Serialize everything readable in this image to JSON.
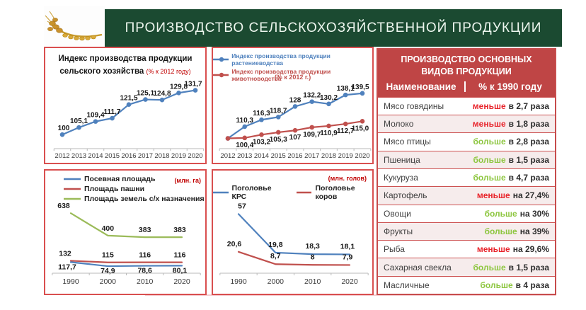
{
  "header": {
    "title": "ПРОИЗВОДСТВО СЕЛЬСКОХОЗЯЙСТВЕННОЙ ПРОДУКЦИИ"
  },
  "colors": {
    "banner_bg": "#1b4a31",
    "panel_border": "#d94f4f",
    "line_blue": "#4f81bd",
    "line_red": "#c0504d",
    "line_green": "#9bbb59",
    "table_header_bg": "#bf4545",
    "less": "#e8232a",
    "more": "#8dc63f",
    "note_red": "#c00000",
    "axis_gray": "#b9b9b9",
    "label_dark": "#1a1a1a"
  },
  "chart_data": [
    {
      "id": "c1",
      "type": "line",
      "title_line1": "Индекс производства продукции",
      "title_line2": "сельского хозяйства",
      "title_note": "(% к 2012 году)",
      "categories": [
        "2012",
        "2013",
        "2014",
        "2015",
        "2016",
        "2017",
        "2018",
        "2019",
        "2020"
      ],
      "ylim": [
        90,
        135
      ],
      "series": [
        {
          "name": "Индекс производства продукции сельского хозяйства",
          "color": "blue",
          "marker": true,
          "label_pos": "above",
          "values": [
            100,
            105.1,
            109.4,
            111.7,
            121.5,
            125.1,
            124.8,
            129.8,
            131.7
          ],
          "labels": [
            "100",
            "105,1",
            "109,4",
            "111,7",
            "121,5",
            "125,1",
            "124,8",
            "129,8",
            "131,7"
          ]
        }
      ]
    },
    {
      "id": "c2",
      "type": "line",
      "legend": [
        {
          "color": "blue",
          "label": "Индекс производства продукции растениеводства"
        },
        {
          "color": "red",
          "label": "Индекс производства продукции животноводства"
        }
      ],
      "legend_note": "(% к 2012 г.)",
      "categories": [
        "2012",
        "2013",
        "2014",
        "2015",
        "2016",
        "2017",
        "2018",
        "2019",
        "2020"
      ],
      "ylim": [
        91,
        145
      ],
      "series": [
        {
          "name": "Индекс производства продукции растениеводства",
          "color": "blue",
          "marker": true,
          "label_pos": "above",
          "values": [
            100,
            110.3,
            116.3,
            118.7,
            128,
            132.2,
            130.2,
            138.1,
            139.5
          ],
          "labels": [
            "",
            "110,3",
            "116,3",
            "118,7",
            "128",
            "132,2",
            "130,2",
            "138,1",
            "139,5"
          ]
        },
        {
          "name": "Индекс производства продукции животноводства",
          "color": "red",
          "marker": true,
          "label_pos": "below",
          "values": [
            100,
            100.4,
            103.2,
            105.3,
            107,
            109.7,
            110.9,
            112.7,
            115.0
          ],
          "labels": [
            "",
            "100,4",
            "103,2",
            "105,3",
            "107",
            "109,7",
            "110,9",
            "112,7",
            "115,0"
          ]
        }
      ]
    },
    {
      "id": "c3",
      "type": "line",
      "legend": [
        {
          "color": "blue",
          "label": "Посевная площадь"
        },
        {
          "color": "red",
          "label": "Площадь пашни"
        },
        {
          "color": "green",
          "label": "Площадь земель с/х назначения"
        }
      ],
      "unit": "(млн. га)",
      "categories": [
        "1990",
        "2000",
        "2010",
        "2020"
      ],
      "ylim": [
        0,
        700
      ],
      "series": [
        {
          "name": "Площадь земель с/х назначения",
          "color": "green",
          "marker": false,
          "label_pos": "above",
          "label_dy": -7,
          "label_dx0": -10,
          "values": [
            638,
            400,
            383,
            383
          ],
          "labels": [
            "638",
            "400",
            "383",
            "383"
          ]
        },
        {
          "name": "Площадь пашни",
          "color": "red",
          "marker": false,
          "label_pos": "above",
          "label_dy": -7,
          "label_dx0": -8,
          "values": [
            132,
            115,
            116,
            116
          ],
          "labels": [
            "132",
            "115",
            "116",
            "116"
          ]
        },
        {
          "name": "Посевная площадь",
          "color": "blue",
          "marker": false,
          "label_pos": "below",
          "label_dy": 10,
          "label_dx0": -5,
          "values": [
            117.7,
            74.9,
            78.6,
            80.1
          ],
          "labels": [
            "117,7",
            "74,9",
            "78,6",
            "80,1"
          ]
        }
      ]
    },
    {
      "id": "c4",
      "type": "line",
      "legend": [
        {
          "color": "blue",
          "label": "Поголовье КРС"
        },
        {
          "color": "red",
          "label": "Поголовье коров"
        }
      ],
      "unit": "(млн. голов)",
      "categories": [
        "1990",
        "2000",
        "2010",
        "2020"
      ],
      "ylim": [
        0,
        60
      ],
      "series": [
        {
          "name": "Поголовье КРС",
          "color": "blue",
          "marker": false,
          "label_pos": "above",
          "label_dy": -8,
          "label_dx0": 5,
          "values": [
            57,
            19.8,
            18.3,
            18.1
          ],
          "labels": [
            "57",
            "19,8",
            "18,3",
            "18,1"
          ]
        },
        {
          "name": "Поголовье коров",
          "color": "red",
          "marker": false,
          "label_pos": "above",
          "label_dy": -8,
          "label_dx0": -6,
          "values": [
            20.6,
            8.7,
            8,
            7.9
          ],
          "labels": [
            "20,6",
            "8,7",
            "8",
            "7,9"
          ]
        }
      ]
    }
  ],
  "table": {
    "title": "ПРОИЗВОДСТВО ОСНОВНЫХ ВИДОВ ПРОДУКЦИИ",
    "columns": [
      "Наименование",
      "% к 1990 году"
    ],
    "rows": [
      {
        "name": "Мясо говядины",
        "word": "меньше",
        "rest": "в 2,7 раза",
        "trend": "less"
      },
      {
        "name": "Молоко",
        "word": "меньше",
        "rest": "в 1,8 раза",
        "trend": "less"
      },
      {
        "name": "Мясо птицы",
        "word": "больше",
        "rest": "в 2,8 раза",
        "trend": "more"
      },
      {
        "name": "Пшеница",
        "word": "больше",
        "rest": "в 1,5 раза",
        "trend": "more"
      },
      {
        "name": "Кукуруза",
        "word": "больше",
        "rest": "в 4,7 раза",
        "trend": "more"
      },
      {
        "name": "Картофель",
        "word": "меньше",
        "rest": "на 27,4%",
        "trend": "less"
      },
      {
        "name": "Овощи",
        "word": "больше",
        "rest": "на 30%",
        "trend": "more"
      },
      {
        "name": "Фрукты",
        "word": "больше",
        "rest": "на 39%",
        "trend": "more"
      },
      {
        "name": "Рыба",
        "word": "меньше",
        "rest": "на 29,6%",
        "trend": "less"
      },
      {
        "name": "Сахарная свекла",
        "word": "больше",
        "rest": "в 1,5 раза",
        "trend": "more"
      },
      {
        "name": "Масличные",
        "word": "больше",
        "rest": "в 4 раза",
        "trend": "more"
      }
    ]
  }
}
